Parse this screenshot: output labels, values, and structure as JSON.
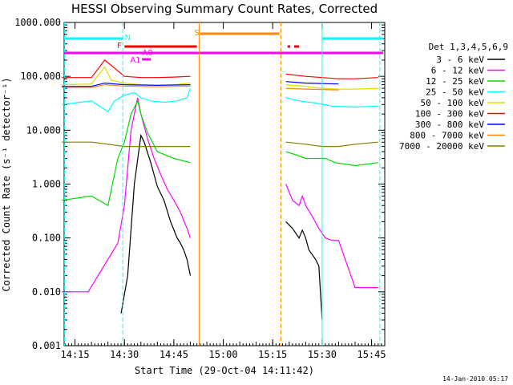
{
  "chart_data": {
    "type": "line",
    "title": "HESSI Observing Summary Count Rates, Corrected",
    "xlabel": "Start Time (29-Oct-04 14:11:42)",
    "ylabel": "Corrected Count Rate (s⁻¹ detector⁻¹)",
    "yscale": "log",
    "ylim": [
      0.001,
      1000
    ],
    "xlim": [
      "14:11:42",
      "15:49:00"
    ],
    "y_ticks": [
      "0.001",
      "0.010",
      "0.100",
      "1.000",
      "10.000",
      "100.000",
      "1000.000"
    ],
    "x_ticks": [
      "14:15",
      "14:30",
      "14:45",
      "15:00",
      "15:15",
      "15:30",
      "15:45"
    ],
    "legend_title": "Det 1,3,4,5,6,9",
    "legend_position": "right",
    "footer": "14-Jan-2010 05:17",
    "series": [
      {
        "name": "3 - 6 keV",
        "color": "#000000",
        "x": [
          "14:29",
          "14:31",
          "14:33",
          "14:35",
          "14:36",
          "14:38",
          "14:40",
          "14:42",
          "14:44",
          "14:46",
          "14:47",
          "14:48",
          "14:49",
          "14:50",
          "15:19",
          "15:21",
          "15:23",
          "15:24",
          "15:25",
          "15:26",
          "15:28",
          "15:29",
          "15:30"
        ],
        "y": [
          0.004,
          0.02,
          1,
          8,
          6,
          2.5,
          0.9,
          0.5,
          0.2,
          0.1,
          0.08,
          0.06,
          0.04,
          0.02,
          0.2,
          0.15,
          0.1,
          0.14,
          0.1,
          0.06,
          0.04,
          0.03,
          0.003
        ]
      },
      {
        "name": "6 - 12 keV",
        "color": "#ff00ff",
        "x": [
          "14:11",
          "14:19",
          "14:28",
          "14:30",
          "14:32",
          "14:34",
          "14:35",
          "14:37",
          "14:39",
          "14:41",
          "14:43",
          "14:45",
          "14:47",
          "14:49",
          "14:50",
          "15:19",
          "15:21",
          "15:23",
          "15:24",
          "15:25",
          "15:27",
          "15:29",
          "15:31",
          "15:33",
          "15:35",
          "15:40",
          "15:47"
        ],
        "y": [
          0.01,
          0.01,
          0.08,
          0.4,
          10,
          40,
          20,
          7,
          3,
          1.5,
          0.8,
          0.5,
          0.3,
          0.15,
          0.1,
          1,
          0.5,
          0.4,
          0.6,
          0.4,
          0.25,
          0.15,
          0.1,
          0.09,
          0.09,
          0.012,
          0.012
        ]
      },
      {
        "name": "12 - 25 keV",
        "color": "#00dd00",
        "x": [
          "14:11",
          "14:20",
          "14:25",
          "14:28",
          "14:30",
          "14:32",
          "14:34",
          "14:35",
          "14:37",
          "14:40",
          "14:45",
          "14:50",
          "15:19",
          "15:22",
          "15:25",
          "15:28",
          "15:31",
          "15:34",
          "15:40",
          "15:47"
        ],
        "y": [
          0.5,
          0.6,
          0.4,
          3,
          6,
          20,
          35,
          20,
          9,
          4,
          3,
          2.5,
          4,
          3.5,
          3,
          3,
          3,
          2.5,
          2.2,
          2.5
        ]
      },
      {
        "name": "25 - 50 keV",
        "color": "#00ffff",
        "x": [
          "14:11",
          "14:20",
          "14:25",
          "14:27",
          "14:30",
          "14:33",
          "14:35",
          "14:38",
          "14:42",
          "14:46",
          "14:49",
          "14:50",
          "15:19",
          "15:23",
          "15:28",
          "15:33",
          "15:40",
          "15:47"
        ],
        "y": [
          30,
          35,
          22,
          35,
          45,
          50,
          40,
          35,
          33,
          35,
          40,
          60,
          40,
          35,
          32,
          28,
          27,
          28
        ]
      },
      {
        "name": "50 - 100 keV",
        "color": "#dddd00",
        "x": [
          "14:11",
          "14:20",
          "14:24",
          "14:26",
          "14:30",
          "14:35",
          "14:40",
          "14:45",
          "14:50",
          "15:19",
          "15:25",
          "15:30",
          "15:35",
          "15:40",
          "15:47"
        ],
        "y": [
          70,
          72,
          150,
          85,
          75,
          70,
          68,
          70,
          75,
          70,
          65,
          60,
          58,
          58,
          60
        ]
      },
      {
        "name": "100 - 300 keV",
        "color": "#ff0000",
        "x": [
          "14:11",
          "14:20",
          "14:24",
          "14:26",
          "14:30",
          "14:35",
          "14:40",
          "14:45",
          "14:50",
          "15:19",
          "15:25",
          "15:30",
          "15:35",
          "15:40",
          "15:47"
        ],
        "y": [
          95,
          95,
          200,
          160,
          100,
          95,
          95,
          97,
          100,
          110,
          100,
          95,
          90,
          90,
          95
        ]
      },
      {
        "name": "300 - 800 keV",
        "color": "#0000ff",
        "x": [
          "14:11",
          "14:20",
          "14:24",
          "14:30",
          "14:40",
          "14:50",
          "15:19",
          "15:25",
          "15:35",
          "15:47"
        ],
        "y": [
          65,
          65,
          75,
          70,
          68,
          70,
          80,
          75,
          72,
          72
        ]
      },
      {
        "name": "800 - 7000 keV",
        "color": "#ff8800",
        "x": [
          "14:11",
          "14:20",
          "14:24",
          "14:30",
          "14:40",
          "14:50",
          "15:19",
          "15:25",
          "15:35",
          "15:47"
        ],
        "y": [
          62,
          62,
          70,
          66,
          64,
          66,
          60,
          58,
          56,
          57
        ]
      },
      {
        "name": "7000 - 20000 keV",
        "color": "#808000",
        "x": [
          "14:11",
          "14:20",
          "14:25",
          "14:30",
          "14:35",
          "14:40",
          "14:45",
          "14:50",
          "15:19",
          "15:25",
          "15:30",
          "15:35",
          "15:40",
          "15:47"
        ],
        "y": [
          6,
          6,
          5.5,
          5,
          5,
          5,
          5,
          5,
          6,
          5.5,
          5,
          5,
          5.5,
          6
        ]
      }
    ],
    "flags": {
      "attenuator_bar": {
        "label": "A1",
        "color": "#ff00ff"
      },
      "attenuator_state": {
        "label": "A0",
        "color": "#ff00ff"
      },
      "flare_bar": {
        "label": "F",
        "color": "#ff0000"
      },
      "saa_bar": {
        "label": "S",
        "color": "#ff8800"
      },
      "night_bar": {
        "label": "N",
        "color": "#00ffff"
      },
      "decimation_bar": {
        "color": "#ff00ff"
      }
    }
  }
}
